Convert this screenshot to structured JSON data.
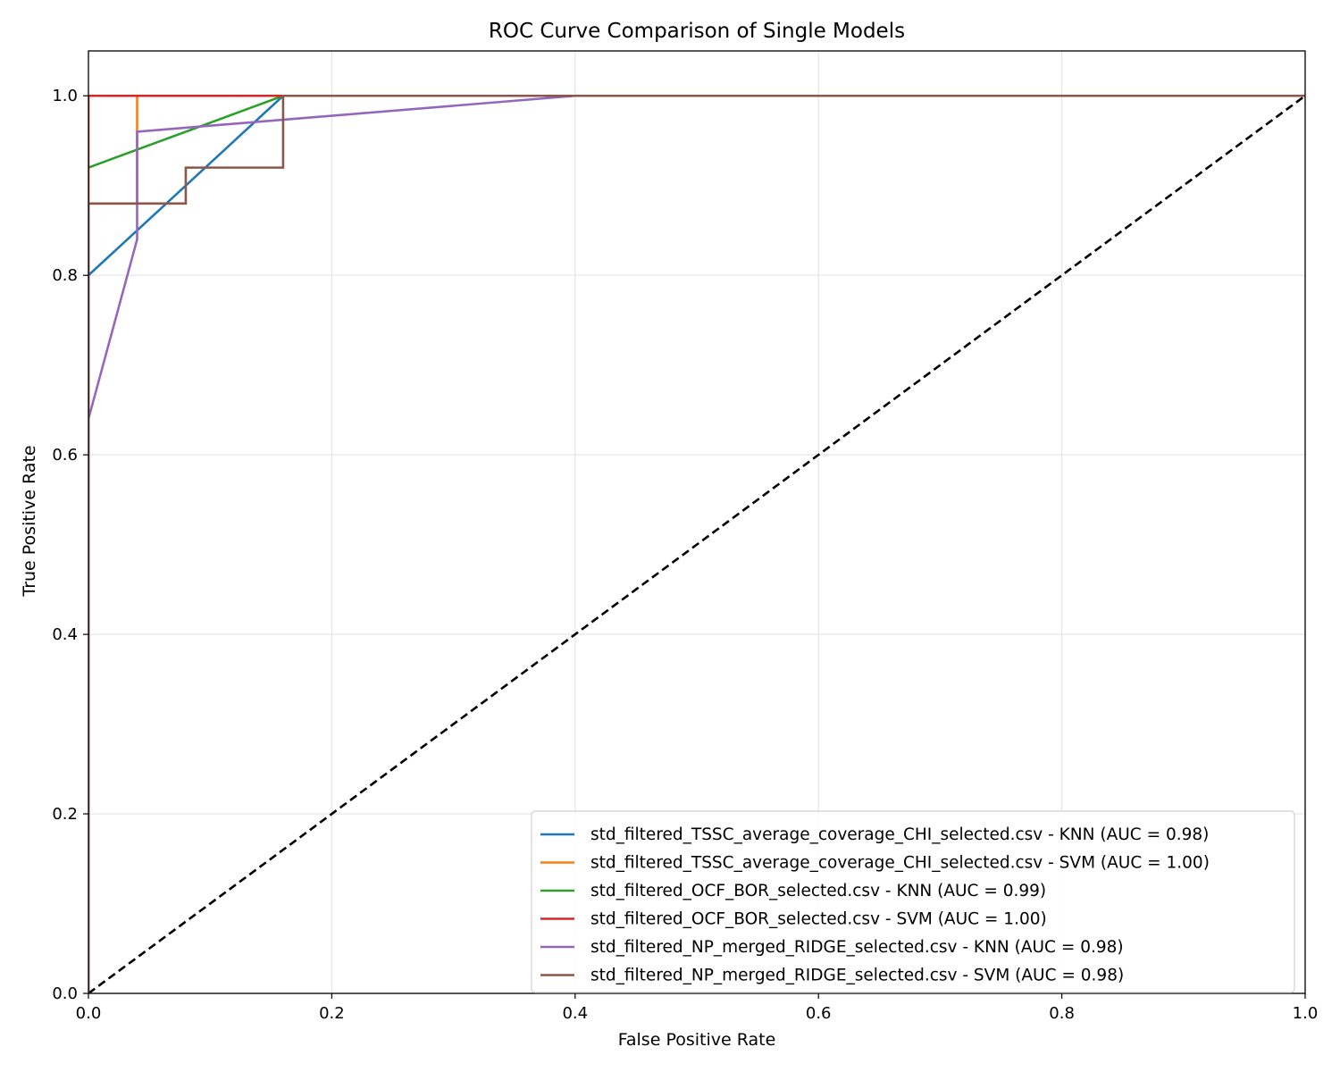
{
  "chart_data": {
    "type": "line",
    "title": "ROC Curve Comparison of Single Models",
    "xlabel": "False Positive Rate",
    "ylabel": "True Positive Rate",
    "xlim": [
      0.0,
      1.0
    ],
    "ylim": [
      0.0,
      1.05
    ],
    "xticks": [
      0.0,
      0.2,
      0.4,
      0.6,
      0.8,
      1.0
    ],
    "yticks": [
      0.0,
      0.2,
      0.4,
      0.6,
      0.8,
      1.0
    ],
    "xtick_labels": [
      "0.0",
      "0.2",
      "0.4",
      "0.6",
      "0.8",
      "1.0"
    ],
    "ytick_labels": [
      "0.0",
      "0.2",
      "0.4",
      "0.6",
      "0.8",
      "1.0"
    ],
    "grid": true,
    "legend_position": "lower-right",
    "series": [
      {
        "name": "std_filtered_TSSC_average_coverage_CHI_selected.csv - KNN (AUC = 0.98)",
        "color": "#1f77b4",
        "x": [
          0.0,
          0.16,
          1.0
        ],
        "y": [
          0.8,
          1.0,
          1.0
        ]
      },
      {
        "name": "std_filtered_TSSC_average_coverage_CHI_selected.csv - SVM (AUC = 1.00)",
        "color": "#ff7f0e",
        "x": [
          0.0,
          0.04,
          0.04,
          1.0
        ],
        "y": [
          0.88,
          0.88,
          1.0,
          1.0
        ]
      },
      {
        "name": "std_filtered_OCF_BOR_selected.csv - KNN (AUC = 0.99)",
        "color": "#2ca02c",
        "x": [
          0.0,
          0.16,
          1.0
        ],
        "y": [
          0.92,
          1.0,
          1.0
        ]
      },
      {
        "name": "std_filtered_OCF_BOR_selected.csv - SVM (AUC = 1.00)",
        "color": "#d62728",
        "x": [
          0.0,
          0.0,
          1.0
        ],
        "y": [
          0.0,
          1.0,
          1.0
        ]
      },
      {
        "name": "std_filtered_NP_merged_RIDGE_selected.csv - KNN (AUC = 0.98)",
        "color": "#9467bd",
        "x": [
          0.0,
          0.04,
          0.04,
          0.4,
          1.0
        ],
        "y": [
          0.64,
          0.84,
          0.96,
          1.0,
          1.0
        ]
      },
      {
        "name": "std_filtered_NP_merged_RIDGE_selected.csv - SVM (AUC = 0.98)",
        "color": "#8c564b",
        "x": [
          0.0,
          0.0,
          0.08,
          0.08,
          0.16,
          0.16,
          1.0
        ],
        "y": [
          0.0,
          0.88,
          0.88,
          0.92,
          0.92,
          1.0,
          1.0
        ]
      }
    ],
    "reference_line": {
      "x": [
        0.0,
        1.0
      ],
      "y": [
        0.0,
        1.0
      ],
      "color": "#000000",
      "style": "dashed"
    }
  }
}
